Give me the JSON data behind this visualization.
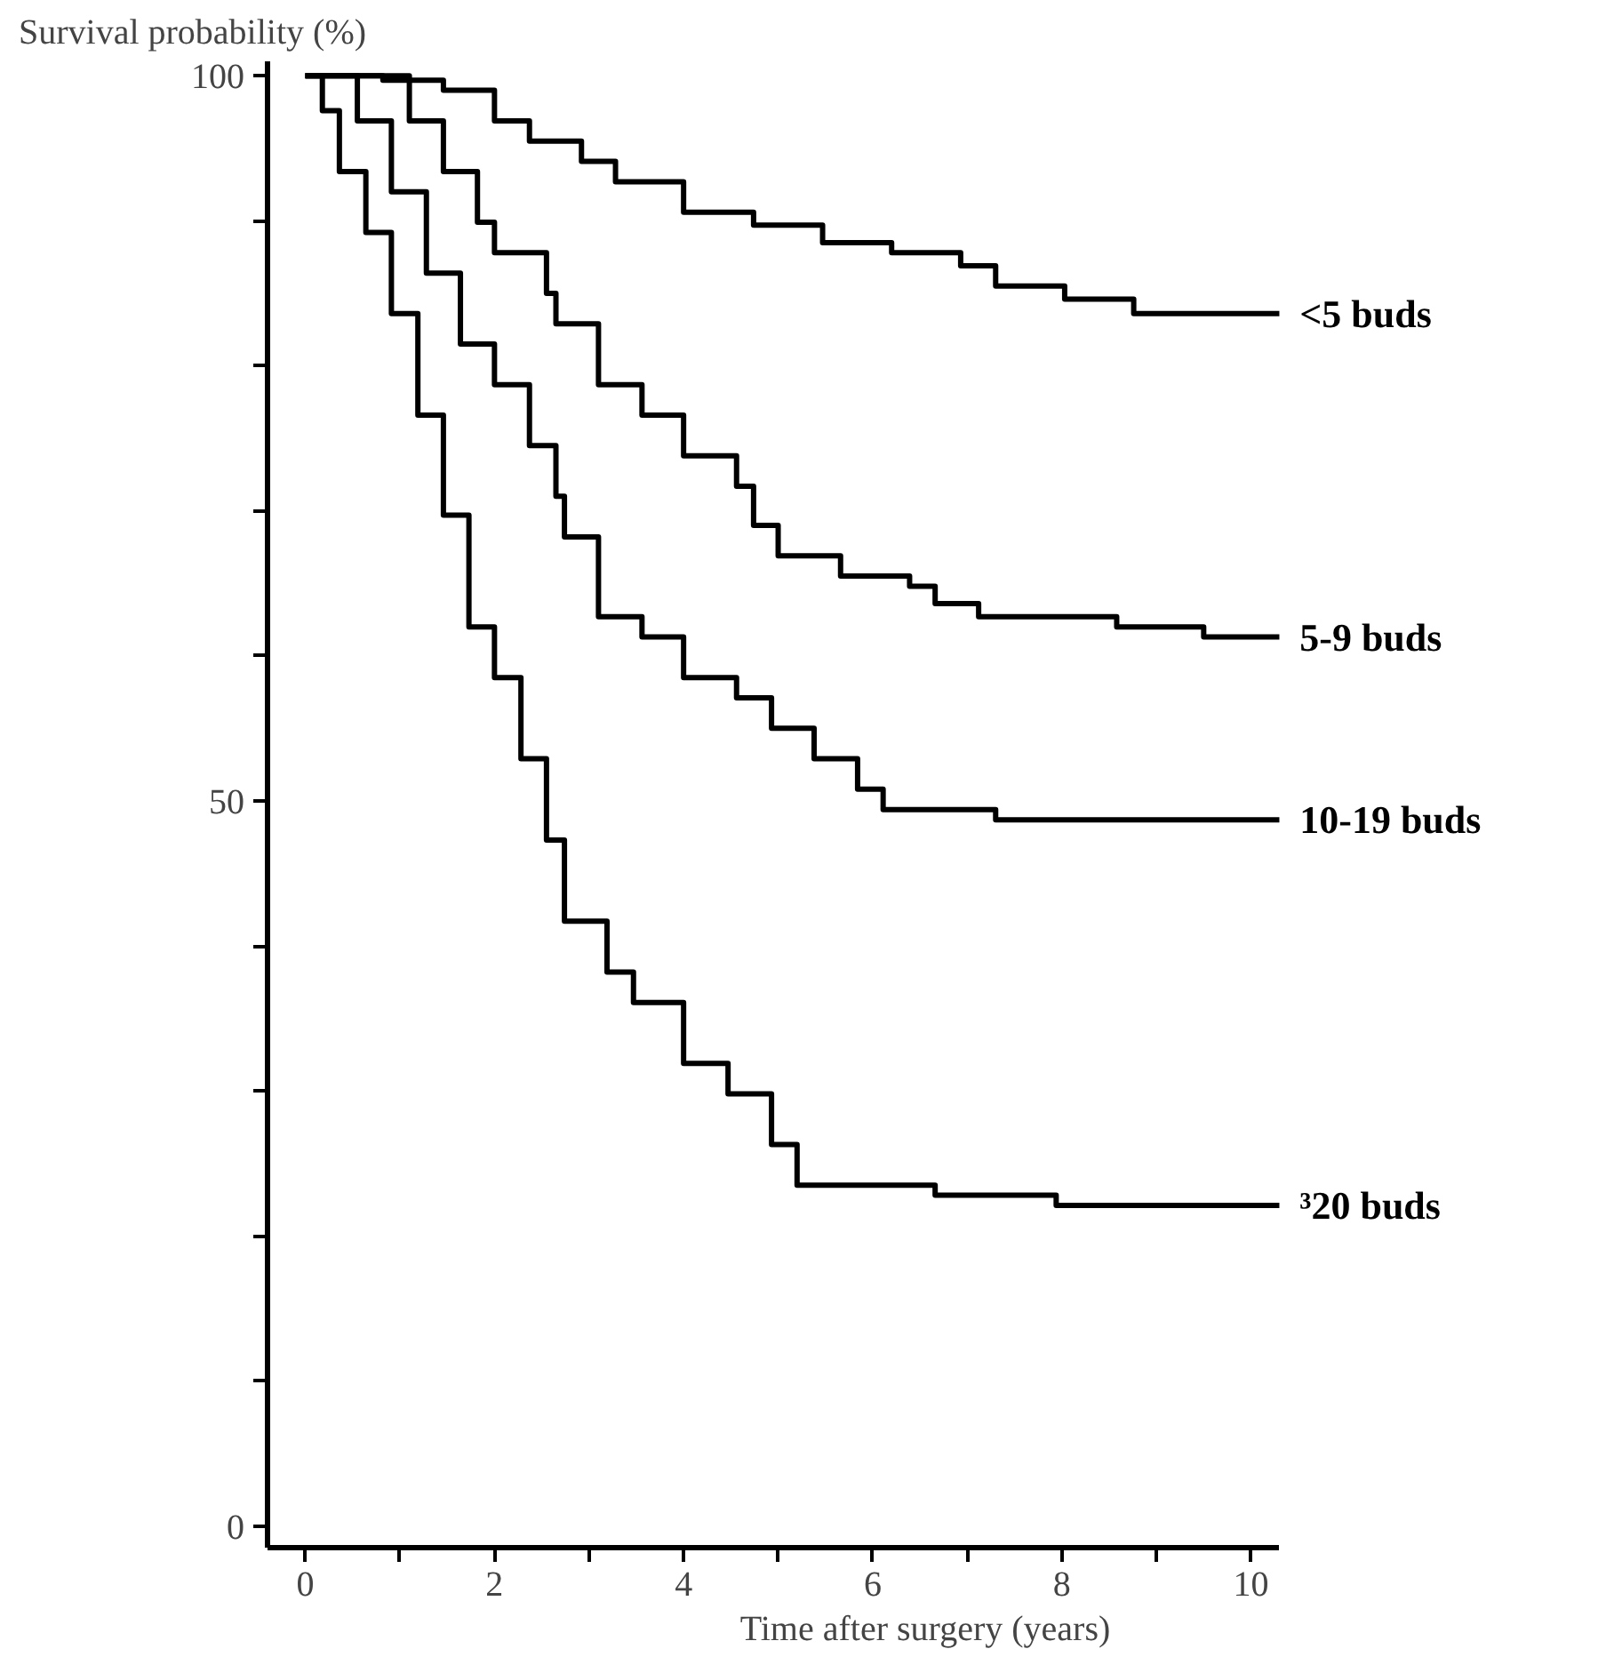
{
  "chart_data": {
    "type": "step",
    "ylabel": "Survival probability (%)",
    "xlabel": "Time after surgery (years)",
    "xlim": [
      -0.4,
      10.3
    ],
    "ylim": [
      -1.5,
      101
    ],
    "xticks": [
      0,
      {
        "value": 1,
        "label": null
      },
      2,
      {
        "value": 3,
        "label": null
      },
      4,
      {
        "value": 5,
        "label": null
      },
      6,
      {
        "value": 7,
        "label": null
      },
      8,
      {
        "value": 9,
        "label": null
      },
      10
    ],
    "yticks": [
      0,
      {
        "value": 10,
        "label": null
      },
      {
        "value": 20,
        "label": null
      },
      {
        "value": 30,
        "label": null
      },
      {
        "value": 40,
        "label": null
      },
      50,
      {
        "value": 60,
        "label": null
      },
      {
        "value": 70,
        "label": null
      },
      {
        "value": 80,
        "label": null
      },
      {
        "value": 90,
        "label": null
      },
      100
    ],
    "grid": false,
    "series": [
      {
        "name": "<5 buds",
        "color": "#000000",
        "x": [
          0,
          0.82,
          1.46,
          2.0,
          2.37,
          2.92,
          3.28,
          4.0,
          4.74,
          5.47,
          6.2,
          6.93,
          7.3,
          8.03,
          8.76,
          10.3
        ],
        "values": [
          100,
          99.7,
          99,
          96.9,
          95.5,
          94.1,
          92.7,
          90.6,
          89.7,
          88.5,
          87.8,
          86.9,
          85.5,
          84.6,
          83.6,
          83.6
        ]
      },
      {
        "name": "5-9 buds",
        "color": "#000000",
        "x": [
          0,
          0.64,
          1.1,
          1.46,
          1.82,
          2.0,
          2.55,
          2.65,
          3.1,
          3.56,
          4.0,
          4.56,
          4.74,
          5.0,
          5.66,
          6.39,
          6.66,
          7.12,
          8.58,
          9.5,
          10.3
        ],
        "values": [
          100,
          100,
          96.9,
          93.4,
          89.9,
          87.8,
          85,
          82.9,
          78.7,
          76.6,
          73.8,
          71.7,
          69,
          66.9,
          65.5,
          64.8,
          63.6,
          62.7,
          62,
          61.3,
          61.3
        ]
      },
      {
        "name": "10-19 buds",
        "color": "#000000",
        "x": [
          0,
          0.27,
          0.55,
          0.91,
          1.28,
          1.64,
          2.0,
          2.37,
          2.65,
          2.74,
          3.1,
          3.56,
          4.0,
          4.56,
          4.93,
          5.38,
          5.84,
          6.11,
          7.3,
          10.3
        ],
        "values": [
          100,
          100,
          96.9,
          92,
          86.4,
          81.5,
          78.7,
          74.5,
          71,
          68.2,
          62.7,
          61.3,
          58.5,
          57.1,
          55,
          52.9,
          50.8,
          49.4,
          48.7,
          48.7
        ]
      },
      {
        "name": "³20 buds",
        "color": "#000000",
        "x": [
          0,
          0.18,
          0.36,
          0.64,
          0.91,
          1.19,
          1.46,
          1.73,
          2.0,
          2.28,
          2.55,
          2.74,
          3.19,
          3.47,
          4.0,
          4.47,
          4.93,
          5.2,
          6.66,
          7.94,
          10.3
        ],
        "values": [
          100,
          97.6,
          93.4,
          89.2,
          83.6,
          76.6,
          69.7,
          62,
          58.5,
          52.9,
          47.3,
          41.7,
          38.2,
          36.1,
          31.9,
          29.8,
          26.3,
          23.5,
          22.8,
          22.1,
          22.1
        ]
      }
    ]
  }
}
